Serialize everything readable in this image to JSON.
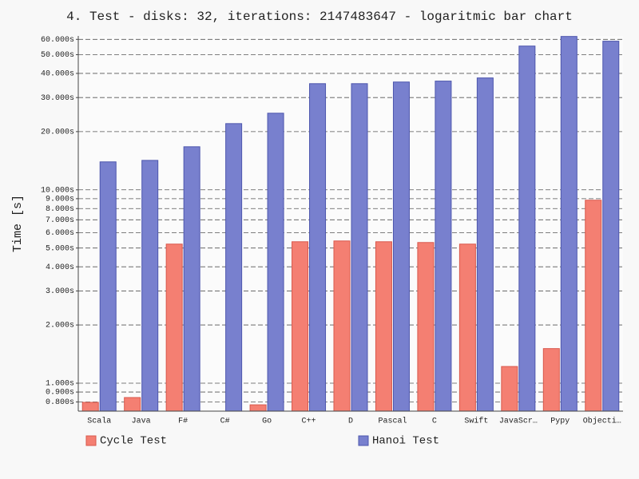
{
  "chart_data": {
    "type": "bar",
    "title": "4. Test - disks: 32, iterations: 2147483647 - logaritmic bar chart",
    "y_label": "Time [s]",
    "categories": [
      "Scala",
      "Java",
      "F#",
      "C#",
      "Go",
      "C++",
      "D",
      "Pascal",
      "C",
      "Swift",
      "JavaScr…",
      "Pypy",
      "Objecti…"
    ],
    "series": [
      {
        "name": "Cycle Test",
        "color": "#f47f72",
        "values": [
          0.796,
          0.843,
          5.24,
          null,
          0.773,
          5.39,
          5.44,
          5.39,
          5.34,
          5.24,
          1.22,
          1.51,
          8.84
        ]
      },
      {
        "name": "Hanoi Test",
        "color": "#7880ce",
        "values": [
          13.95,
          14.2,
          16.7,
          22.0,
          24.9,
          35.4,
          35.4,
          36.1,
          36.5,
          37.9,
          55.4,
          62.1,
          58.7
        ]
      }
    ],
    "log_scale": true,
    "ylim": [
      0.717,
      62.5
    ],
    "yticks": [
      {
        "value": 0.8,
        "label": "0.800s"
      },
      {
        "value": 0.9,
        "label": "0.900s"
      },
      {
        "value": 1,
        "label": "1.000s"
      },
      {
        "value": 2,
        "label": "2.000s"
      },
      {
        "value": 3,
        "label": "3.000s"
      },
      {
        "value": 4,
        "label": "4.000s"
      },
      {
        "value": 5,
        "label": "5.000s"
      },
      {
        "value": 6,
        "label": "6.000s"
      },
      {
        "value": 7,
        "label": "7.000s"
      },
      {
        "value": 8,
        "label": "8.000s"
      },
      {
        "value": 9,
        "label": "9.000s"
      },
      {
        "value": 10,
        "label": "10.000s"
      },
      {
        "value": 20,
        "label": "20.000s"
      },
      {
        "value": 30,
        "label": "30.000s"
      },
      {
        "value": 40,
        "label": "40.000s"
      },
      {
        "value": 50,
        "label": "50.000s"
      },
      {
        "value": 60,
        "label": "60.000s"
      }
    ],
    "grid": true,
    "legend": "bottom"
  }
}
